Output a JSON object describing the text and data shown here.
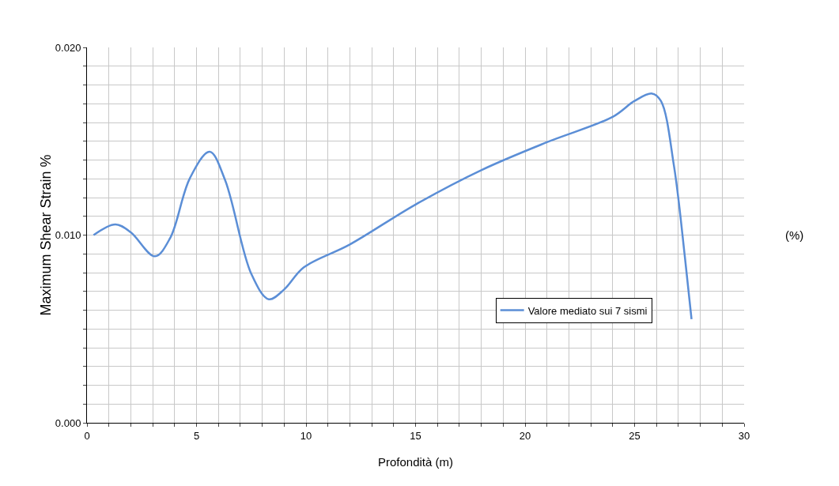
{
  "chart_data": {
    "type": "line",
    "xlabel": "Profondità (m)",
    "ylabel": "Maximum Shear Strain %",
    "annotations": [
      "(%)"
    ],
    "x": [
      0.3,
      1.3,
      2,
      3.1,
      3.8,
      4.7,
      5.6,
      6.3,
      7.5,
      8.3,
      9,
      9.9,
      12,
      15,
      18,
      21,
      24,
      25,
      25.8,
      26.2,
      26.8,
      27.3,
      27.6
    ],
    "series": [
      {
        "name": "Valore mediato sui 7 sismi",
        "color": "#5b8ed6",
        "values": [
          0.01,
          0.01057,
          0.01015,
          0.00887,
          0.00985,
          0.01304,
          0.01444,
          0.01295,
          0.00794,
          0.00658,
          0.0071,
          0.00828,
          0.0095,
          0.01163,
          0.01346,
          0.01495,
          0.0163,
          0.01715,
          0.01754,
          0.01715,
          0.01367,
          0.00879,
          0.00552
        ]
      }
    ],
    "xlim": [
      0,
      30
    ],
    "xticks": [
      0,
      {
        "value": 1,
        "label": null
      },
      {
        "value": 2,
        "label": null
      },
      {
        "value": 3,
        "label": null
      },
      {
        "value": 4,
        "label": null
      },
      5,
      {
        "value": 6,
        "label": null
      },
      {
        "value": 7,
        "label": null
      },
      {
        "value": 8,
        "label": null
      },
      {
        "value": 9,
        "label": null
      },
      10,
      {
        "value": 11,
        "label": null
      },
      {
        "value": 12,
        "label": null
      },
      {
        "value": 13,
        "label": null
      },
      {
        "value": 14,
        "label": null
      },
      15,
      {
        "value": 16,
        "label": null
      },
      {
        "value": 17,
        "label": null
      },
      {
        "value": 18,
        "label": null
      },
      {
        "value": 19,
        "label": null
      },
      20,
      {
        "value": 21,
        "label": null
      },
      {
        "value": 22,
        "label": null
      },
      {
        "value": 23,
        "label": null
      },
      {
        "value": 24,
        "label": null
      },
      25,
      {
        "value": 26,
        "label": null
      },
      {
        "value": 27,
        "label": null
      },
      {
        "value": 28,
        "label": null
      },
      {
        "value": 29,
        "label": null
      },
      30
    ],
    "ylim": [
      0,
      0.02
    ],
    "yticks": [
      {
        "value": 0,
        "label": "0.000"
      },
      {
        "value": 0.001,
        "label": null
      },
      {
        "value": 0.002,
        "label": null
      },
      {
        "value": 0.003,
        "label": null
      },
      {
        "value": 0.004,
        "label": null
      },
      {
        "value": 0.005,
        "label": null
      },
      {
        "value": 0.006,
        "label": null
      },
      {
        "value": 0.007,
        "label": null
      },
      {
        "value": 0.008,
        "label": null
      },
      {
        "value": 0.009,
        "label": null
      },
      {
        "value": 0.01,
        "label": "0.010"
      },
      {
        "value": 0.011,
        "label": null
      },
      {
        "value": 0.012,
        "label": null
      },
      {
        "value": 0.013,
        "label": null
      },
      {
        "value": 0.014,
        "label": null
      },
      {
        "value": 0.015,
        "label": null
      },
      {
        "value": 0.016,
        "label": null
      },
      {
        "value": 0.017,
        "label": null
      },
      {
        "value": 0.018,
        "label": null
      },
      {
        "value": 0.019,
        "label": null
      },
      {
        "value": 0.02,
        "label": "0.020"
      }
    ],
    "grid": true,
    "legend": "right",
    "marker": "none",
    "line_style": "solid"
  }
}
